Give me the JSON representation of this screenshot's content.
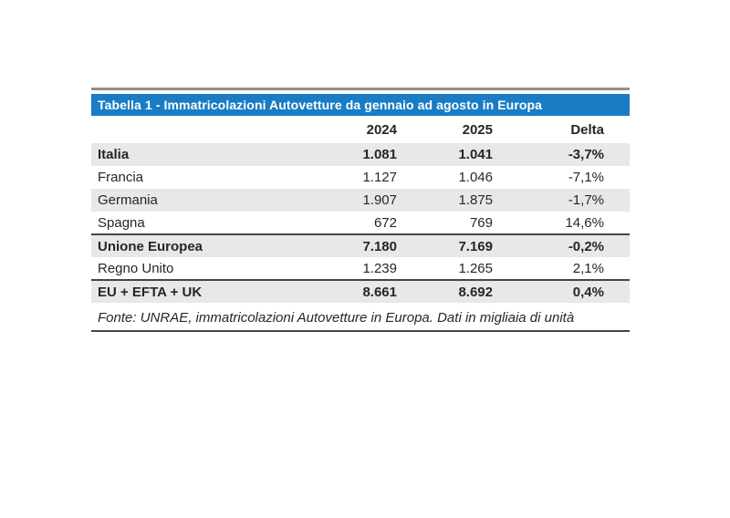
{
  "table": {
    "title": "Tabella 1 - Immatricolazioni Autovetture da gennaio ad agosto in Europa",
    "columns": {
      "label": "",
      "y2024": "2024",
      "y2025": "2025",
      "delta": "Delta"
    },
    "rows": [
      {
        "label": "Italia",
        "v2024": "1.081",
        "v2025": "1.041",
        "delta": "-3,7%",
        "emphasis": true,
        "shaded": true,
        "section_end": false
      },
      {
        "label": "Francia",
        "v2024": "1.127",
        "v2025": "1.046",
        "delta": "-7,1%",
        "emphasis": false,
        "shaded": false,
        "section_end": false
      },
      {
        "label": "Germania",
        "v2024": "1.907",
        "v2025": "1.875",
        "delta": "-1,7%",
        "emphasis": false,
        "shaded": true,
        "section_end": false
      },
      {
        "label": "Spagna",
        "v2024": "672",
        "v2025": "769",
        "delta": "14,6%",
        "emphasis": false,
        "shaded": false,
        "section_end": true
      },
      {
        "label": "Unione Europea",
        "v2024": "7.180",
        "v2025": "7.169",
        "delta": "-0,2%",
        "emphasis": true,
        "shaded": true,
        "section_end": false
      },
      {
        "label": "Regno Unito",
        "v2024": "1.239",
        "v2025": "1.265",
        "delta": "2,1%",
        "emphasis": false,
        "shaded": false,
        "section_end": true
      },
      {
        "label": "EU + EFTA + UK",
        "v2024": "8.661",
        "v2025": "8.692",
        "delta": "0,4%",
        "emphasis": true,
        "shaded": true,
        "section_end": false
      }
    ],
    "footer": "Fonte: UNRAE, immatricolazioni Autovetture in Europa. Dati in migliaia di unità"
  },
  "colors": {
    "header_bg": "#1a7cc4",
    "header_text": "#ffffff",
    "shaded_row": "#e8e8e8",
    "rule_dark": "#454545",
    "rule_light": "#8f8f8f",
    "text": "#262626"
  }
}
